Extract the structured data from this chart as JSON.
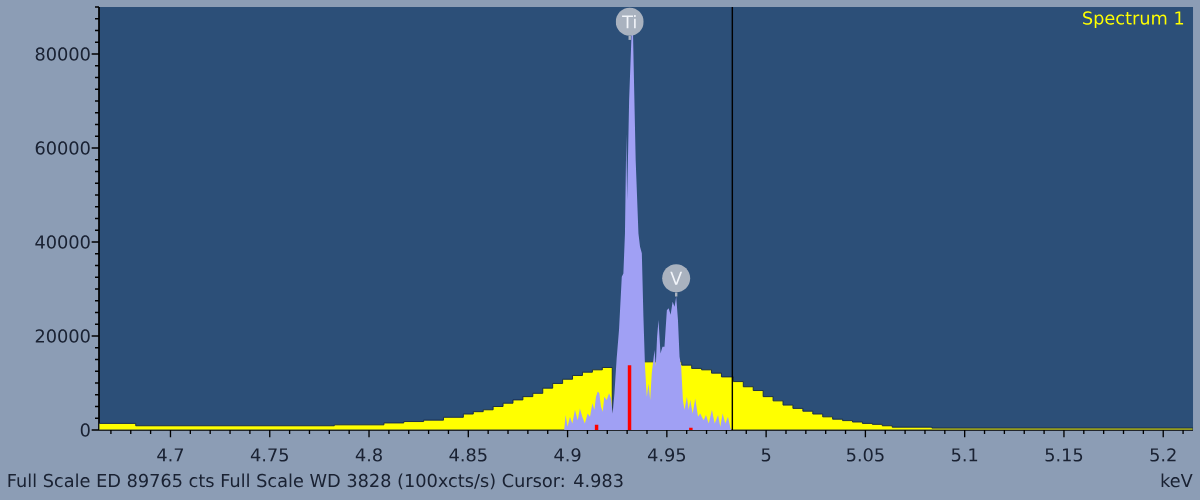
{
  "chart_data": {
    "type": "area",
    "xlabel": "keV",
    "xlim": [
      4.664,
      5.215
    ],
    "ylim": [
      0,
      90000
    ],
    "xticks": [
      4.7,
      4.75,
      4.8,
      4.85,
      4.9,
      4.95,
      5,
      5.05,
      5.1,
      5.15,
      5.2
    ],
    "yticks": [
      0,
      20000,
      40000,
      60000,
      80000
    ],
    "legend": "top right",
    "series": [
      {
        "type": "histogram",
        "name": "Spectrum 1",
        "color": "#ffff00",
        "bins": [
          4.664,
          4.6825,
          4.7825,
          4.8075,
          4.8175,
          4.8275,
          4.8375,
          4.8475,
          4.8525,
          4.8575,
          4.8625,
          4.8675,
          4.8725,
          4.8775,
          4.8825,
          4.8875,
          4.8925,
          4.8975,
          4.9025,
          4.9075,
          4.9125,
          4.9175,
          4.9225,
          4.9275,
          4.9375,
          4.9575,
          4.9625,
          4.9675,
          4.9725,
          4.9775,
          4.9835,
          4.9885,
          4.9935,
          4.9985,
          5.0035,
          5.0085,
          5.0135,
          5.0185,
          5.0235,
          5.0285,
          5.0335,
          5.0385,
          5.0435,
          5.0485,
          5.0535,
          5.0585,
          5.0635,
          5.0835,
          5.215
        ],
        "values": [
          1400,
          900,
          1100,
          1500,
          1800,
          2100,
          2700,
          3400,
          3900,
          4300,
          5000,
          5700,
          6400,
          7100,
          7800,
          8900,
          9900,
          10800,
          11600,
          12300,
          12800,
          13300,
          null,
          null,
          14500,
          13800,
          13100,
          12800,
          12100,
          11300,
          10300,
          9200,
          8400,
          7100,
          6200,
          5300,
          4600,
          4000,
          3400,
          2800,
          2300,
          2000,
          1700,
          1400,
          1200,
          900,
          600,
          400
        ]
      },
      {
        "color": "#a0a0f4",
        "x": [
          4.8983,
          4.899,
          4.9,
          4.9012,
          4.9024,
          4.9037,
          4.9051,
          4.9062,
          4.9074,
          4.9087,
          4.9101,
          4.9113,
          4.9125,
          4.9135,
          4.9143,
          4.9152,
          4.916,
          4.9168,
          4.9177,
          4.9185,
          4.9197,
          4.9209,
          4.9219,
          4.9227,
          4.9236,
          4.9247,
          4.9259,
          4.9273,
          4.9281,
          4.9289,
          4.9296,
          4.93,
          4.931,
          4.932,
          4.9327,
          4.9333,
          4.9343,
          4.9357,
          4.9365,
          4.9374,
          4.9382,
          4.939,
          4.9399,
          4.9408,
          4.9416,
          4.9424,
          4.9438,
          4.9444,
          4.9451,
          4.9458,
          4.9468,
          4.9478,
          4.9488,
          4.95,
          4.9509,
          4.9519,
          4.9529,
          4.9539,
          4.9547,
          4.9556,
          4.9564,
          4.9572,
          4.9581,
          4.9589,
          4.9601,
          4.961,
          4.9618,
          4.963,
          4.9643,
          4.9657,
          4.9668,
          4.9685,
          4.9697,
          4.9711,
          4.9727,
          4.9741,
          4.9758,
          4.9769,
          4.9781,
          4.9794,
          4.9808,
          4.982,
          4.9825
        ],
        "values": [
          0,
          3200,
          700,
          2800,
          1400,
          4300,
          2100,
          4600,
          2800,
          1400,
          3500,
          2800,
          5700,
          4300,
          7100,
          8200,
          7800,
          5000,
          3900,
          7100,
          6400,
          7800,
          6700,
          3500,
          7800,
          15100,
          21300,
          32600,
          33300,
          41800,
          63100,
          48900,
          70200,
          null,
          89700,
          77300,
          57400,
          41800,
          39000,
          37600,
          24100,
          13500,
          7100,
          9900,
          6400,
          12100,
          17000,
          13500,
          19900,
          23400,
          16300,
          17700,
          17700,
          25500,
          25900,
          24500,
          27300,
          26200,
          28400,
          23400,
          15600,
          13500,
          6400,
          4300,
          7100,
          4300,
          6400,
          3500,
          6700,
          2800,
          3500,
          2100,
          3200,
          1400,
          4300,
          1400,
          3200,
          700,
          3500,
          1400,
          2800,
          400,
          0
        ]
      },
      {
        "type": "bar",
        "color": "#ff0000",
        "x": [
          4.9146,
          4.9312,
          4.9621
        ],
        "values": [
          1100,
          13800,
          500
        ]
      }
    ],
    "ref_lines": [
      {
        "axis": "x",
        "value": 4.983,
        "color": "#000000"
      }
    ],
    "annotations": [
      "Full Scale ED 89765 cts Full Scale WD 3828 (100xcts/s) Cursor: 4.983",
      {
        "text": "Ti",
        "x": 4.9313,
        "y": 83000
      },
      {
        "text": "V",
        "x": 4.9547,
        "y": 28400
      }
    ]
  }
}
